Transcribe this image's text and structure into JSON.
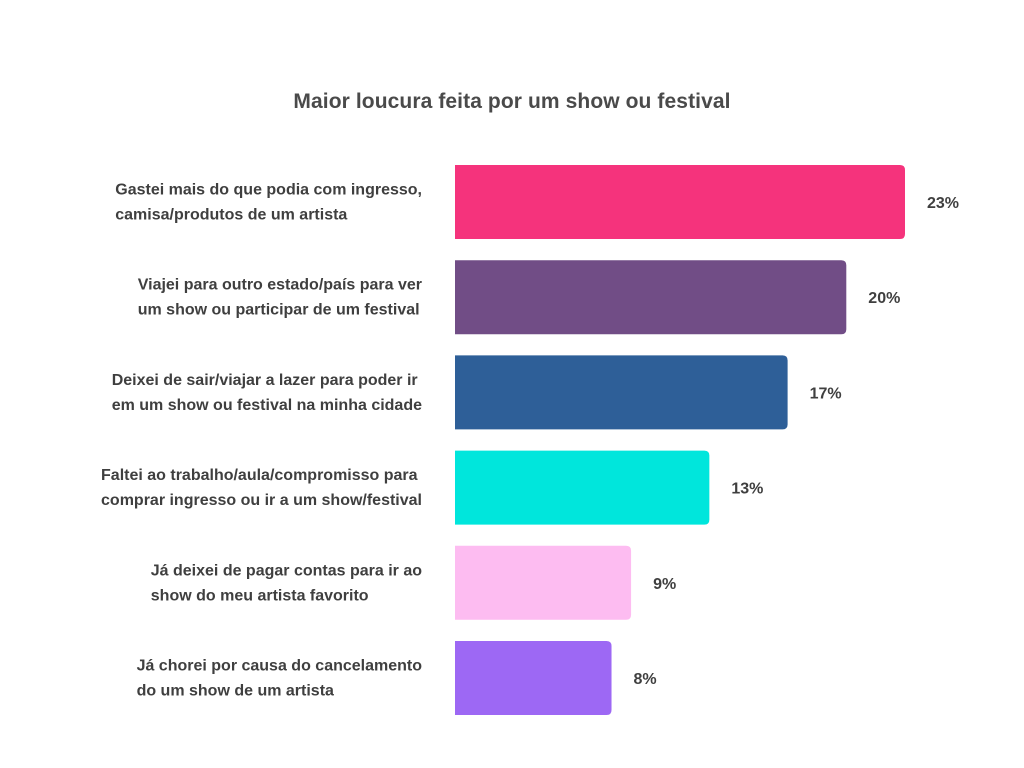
{
  "chart_data": {
    "type": "bar",
    "orientation": "horizontal",
    "title": "Maior loucura feita por um show ou festival",
    "xlabel": "",
    "ylabel": "",
    "xlim": [
      0,
      23
    ],
    "grid": false,
    "legend": "none",
    "value_suffix": "%",
    "categories": [
      [
        "Gastei mais do que podia com ingresso,",
        "camisa/produtos de um artista"
      ],
      [
        "Viajei para outro estado/país para ver",
        "um show ou participar de um festival"
      ],
      [
        "Deixei de sair/viajar a lazer para poder ir",
        "em um show ou festival na minha cidade"
      ],
      [
        "Faltei ao trabalho/aula/compromisso para",
        "comprar ingresso ou ir a um show/festival"
      ],
      [
        "Já deixei de pagar contas para ir ao",
        "show do meu artista favorito"
      ],
      [
        "Já chorei por causa do cancelamento",
        "do um show de um artista"
      ]
    ],
    "values": [
      23,
      20,
      17,
      13,
      9,
      8
    ],
    "value_labels": [
      "23%",
      "20%",
      "17%",
      "13%",
      "9%",
      "8%"
    ],
    "colors": [
      "#f5337c",
      "#714d86",
      "#2e5f98",
      "#00e6dc",
      "#fdbcf1",
      "#9d68f4"
    ]
  }
}
